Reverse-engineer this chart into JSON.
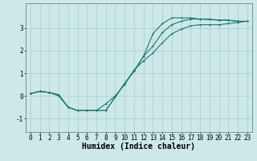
{
  "title": "",
  "xlabel": "Humidex (Indice chaleur)",
  "bg_color": "#cce8e8",
  "line_color": "#1a7a6e",
  "grid_color": "#aacccc",
  "xlim": [
    -0.5,
    23.5
  ],
  "ylim": [
    -1.6,
    4.1
  ],
  "yticks": [
    -1,
    0,
    1,
    2,
    3
  ],
  "xticks": [
    0,
    1,
    2,
    3,
    4,
    5,
    6,
    7,
    8,
    9,
    10,
    11,
    12,
    13,
    14,
    15,
    16,
    17,
    18,
    19,
    20,
    21,
    22,
    23
  ],
  "line1_x": [
    0,
    1,
    2,
    3,
    4,
    5,
    6,
    7,
    8,
    9,
    10,
    11,
    12,
    13,
    14,
    15,
    16,
    17,
    18,
    19,
    20,
    21,
    22,
    23
  ],
  "line1_y": [
    0.1,
    0.2,
    0.15,
    0.05,
    -0.5,
    -0.65,
    -0.65,
    -0.65,
    -0.65,
    -0.05,
    0.55,
    1.1,
    1.75,
    2.75,
    3.2,
    3.45,
    3.45,
    3.45,
    3.4,
    3.4,
    3.35,
    3.35,
    3.3,
    3.3
  ],
  "line2_x": [
    0,
    1,
    2,
    3,
    4,
    5,
    6,
    7,
    8,
    9,
    10,
    11,
    12,
    13,
    14,
    15,
    16,
    17,
    18,
    19,
    20,
    21,
    22,
    23
  ],
  "line2_y": [
    0.1,
    0.2,
    0.15,
    0.05,
    -0.5,
    -0.65,
    -0.65,
    -0.65,
    -0.65,
    -0.05,
    0.55,
    1.1,
    1.75,
    2.2,
    2.8,
    3.15,
    3.3,
    3.4,
    3.4,
    3.38,
    3.35,
    3.35,
    3.3,
    3.3
  ],
  "line3_x": [
    0,
    1,
    2,
    3,
    4,
    5,
    6,
    7,
    8,
    9,
    10,
    11,
    12,
    13,
    14,
    15,
    16,
    17,
    18,
    19,
    20,
    21,
    22,
    23
  ],
  "line3_y": [
    0.1,
    0.2,
    0.15,
    0.0,
    -0.5,
    -0.65,
    -0.65,
    -0.65,
    -0.35,
    0.0,
    0.5,
    1.15,
    1.55,
    1.9,
    2.35,
    2.75,
    2.95,
    3.1,
    3.15,
    3.15,
    3.15,
    3.2,
    3.25,
    3.3
  ],
  "xlabel_fontsize": 7,
  "tick_fontsize": 5.5
}
